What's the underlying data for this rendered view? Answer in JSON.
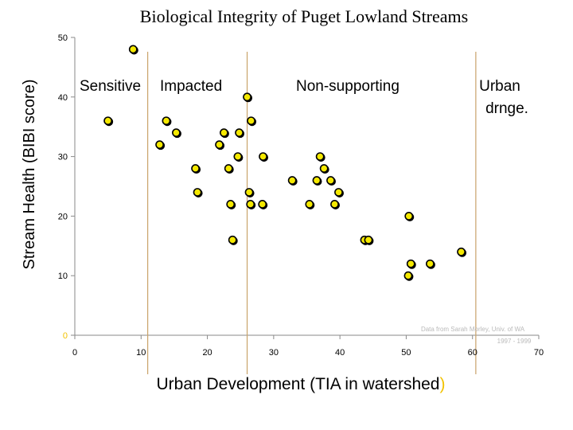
{
  "chart_data": {
    "type": "scatter",
    "title": "Biological Integrity of Puget Lowland Streams",
    "xlabel": "Urban Development (TIA in watershed",
    "xlabel_close": ")",
    "ylabel": "Stream Health (BIBI score)",
    "xlim": [
      0,
      70
    ],
    "ylim": [
      0,
      50
    ],
    "x_ticks": [
      "0",
      "10",
      "20",
      "30",
      "40",
      "50",
      "60",
      "70"
    ],
    "y_ticks": [
      "0",
      "10",
      "20",
      "30",
      "40",
      "50"
    ],
    "grid": false,
    "legend": "none",
    "boundaries": [
      11,
      26,
      60.5
    ],
    "regions": [
      {
        "label": "Sensitive",
        "label_line2": ""
      },
      {
        "label": "Impacted",
        "label_line2": ""
      },
      {
        "label": "Non-supporting",
        "label_line2": ""
      },
      {
        "label": "Urban",
        "label_line2": "drnge."
      }
    ],
    "credit": [
      "Data from Sarah Morley, Univ. of WA",
      "1997 - 1999"
    ],
    "colors": {
      "marker_fill": "#f5e900",
      "marker_stroke": "#000000",
      "boundary": "#c9a36a",
      "axis": "#8a8a8a",
      "paren": "#f2c200"
    },
    "points": [
      {
        "x": 8.8,
        "y": 48
      },
      {
        "x": 5,
        "y": 36
      },
      {
        "x": 13.8,
        "y": 36
      },
      {
        "x": 15.3,
        "y": 34
      },
      {
        "x": 12.8,
        "y": 32
      },
      {
        "x": 18.2,
        "y": 28
      },
      {
        "x": 18.5,
        "y": 24
      },
      {
        "x": 22.5,
        "y": 34
      },
      {
        "x": 24.8,
        "y": 34
      },
      {
        "x": 21.8,
        "y": 32
      },
      {
        "x": 23.2,
        "y": 28
      },
      {
        "x": 24.6,
        "y": 30
      },
      {
        "x": 23.5,
        "y": 22
      },
      {
        "x": 23.8,
        "y": 16
      },
      {
        "x": 26,
        "y": 40
      },
      {
        "x": 26.6,
        "y": 36
      },
      {
        "x": 26.3,
        "y": 24
      },
      {
        "x": 26.5,
        "y": 22
      },
      {
        "x": 28.4,
        "y": 30
      },
      {
        "x": 28.3,
        "y": 22
      },
      {
        "x": 32.8,
        "y": 26
      },
      {
        "x": 35.4,
        "y": 22
      },
      {
        "x": 36.5,
        "y": 26
      },
      {
        "x": 37,
        "y": 30
      },
      {
        "x": 37.6,
        "y": 28
      },
      {
        "x": 38.6,
        "y": 26
      },
      {
        "x": 39.2,
        "y": 22
      },
      {
        "x": 39.8,
        "y": 24
      },
      {
        "x": 43.7,
        "y": 16
      },
      {
        "x": 44.3,
        "y": 16
      },
      {
        "x": 50.4,
        "y": 20
      },
      {
        "x": 50.7,
        "y": 12
      },
      {
        "x": 50.3,
        "y": 10
      },
      {
        "x": 53.6,
        "y": 12
      },
      {
        "x": 58.3,
        "y": 14
      }
    ]
  }
}
